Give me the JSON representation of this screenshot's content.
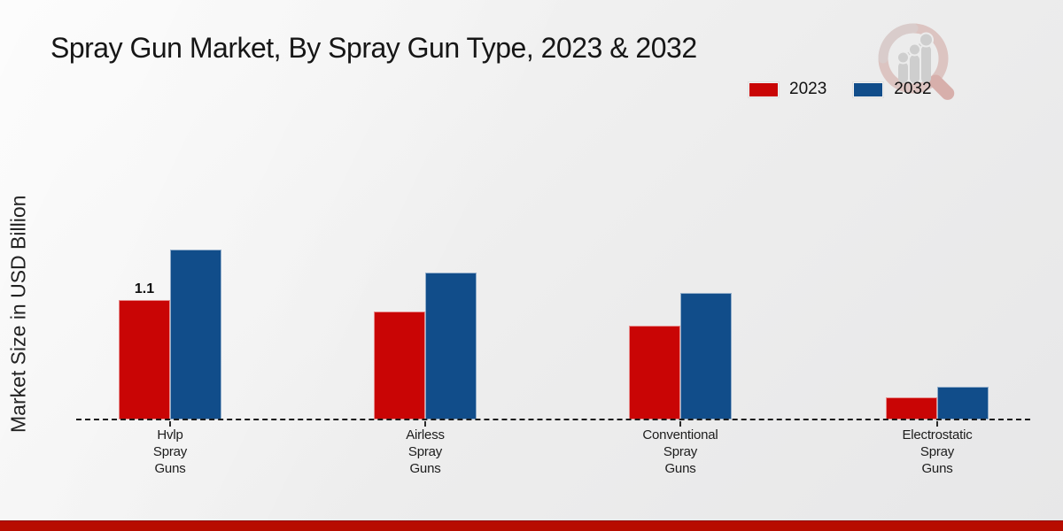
{
  "title": "Spray Gun Market, By Spray Gun Type, 2023 & 2032",
  "watermark_icon": "magnifier-bar-chart-icon",
  "accent": {
    "footer_bar_color": "#b70c00"
  },
  "chart_data": {
    "type": "bar",
    "title": "Spray Gun Market, By Spray Gun Type, 2023 & 2032",
    "xlabel": "",
    "ylabel": "Market Size in USD Billion",
    "categories": [
      "Hvlp Spray Guns",
      "Airless Spray Guns",
      "Conventional Spray Guns",
      "Electrostatic Spray Guns"
    ],
    "category_label_lines": [
      [
        "Hvlp",
        "Spray",
        "Guns"
      ],
      [
        "Airless",
        "Spray",
        "Guns"
      ],
      [
        "Conventional",
        "Spray",
        "Guns"
      ],
      [
        "Electrostatic",
        "Spray",
        "Guns"
      ]
    ],
    "series": [
      {
        "name": "2023",
        "color": "#c90505",
        "values": [
          1.1,
          0.99,
          0.86,
          0.2
        ]
      },
      {
        "name": "2032",
        "color": "#114d8a",
        "values": [
          1.56,
          1.35,
          1.16,
          0.3
        ]
      }
    ],
    "annotations": [
      {
        "series": "2023",
        "category_index": 0,
        "text": "1.1"
      }
    ],
    "ylim": [
      0,
      1.7
    ],
    "grid": false,
    "y_axis_ticks_visible": false,
    "baseline_style": "dashed",
    "legend_position": "top-right"
  }
}
